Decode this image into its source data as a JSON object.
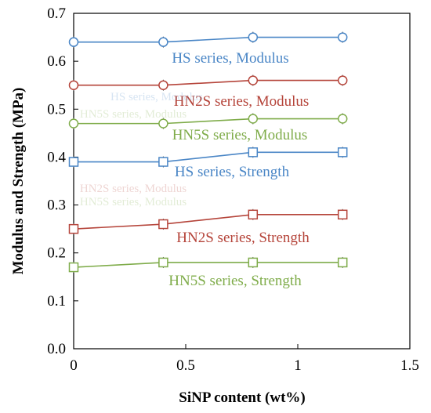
{
  "chart_data": {
    "type": "line",
    "xlabel": "SiNP content (wt%)",
    "ylabel": "Modulus and Strength (MPa)",
    "xlim": [
      0,
      1.5
    ],
    "ylim": [
      0,
      0.7
    ],
    "x_ticks": [
      "0",
      "0.5",
      "1",
      "1.5"
    ],
    "y_ticks": [
      "0.0",
      "0.1",
      "0.2",
      "0.3",
      "0.4",
      "0.5",
      "0.6",
      "0.7"
    ],
    "grid": false,
    "legend": "inline labels",
    "x": [
      0,
      0.4,
      0.8,
      1.2
    ],
    "series": [
      {
        "name": "HS series, Modulus",
        "marker": "circle",
        "color": "#4a86c6",
        "values": [
          0.64,
          0.64,
          0.65,
          0.65
        ]
      },
      {
        "name": "HN2S series, Modulus",
        "marker": "circle",
        "color": "#b5443a",
        "values": [
          0.55,
          0.55,
          0.56,
          0.56
        ]
      },
      {
        "name": "HN5S series, Modulus",
        "marker": "circle",
        "color": "#7fac4a",
        "values": [
          0.47,
          0.47,
          0.48,
          0.48
        ]
      },
      {
        "name": "HS series, Strength",
        "marker": "square",
        "color": "#4a86c6",
        "values": [
          0.39,
          0.39,
          0.41,
          0.41
        ]
      },
      {
        "name": "HN2S series, Strength",
        "marker": "square",
        "color": "#b5443a",
        "values": [
          0.25,
          0.26,
          0.28,
          0.28
        ]
      },
      {
        "name": "HN5S series, Strength",
        "marker": "square",
        "color": "#7fac4a",
        "values": [
          0.17,
          0.18,
          0.18,
          0.18
        ]
      }
    ]
  }
}
